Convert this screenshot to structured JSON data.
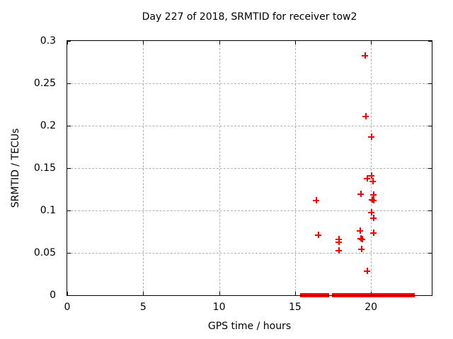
{
  "chart_data": {
    "type": "scatter",
    "title": "Day 227 of 2018, SRMTID for receiver tow2",
    "xlabel": "GPS time / hours",
    "ylabel": "SRMTID / TECUs",
    "xlim": [
      0,
      24
    ],
    "ylim": [
      0,
      0.3
    ],
    "grid": true,
    "legend": false,
    "xticks": {
      "values": [
        0,
        5,
        10,
        15,
        20
      ],
      "labels": [
        "0",
        "5",
        "10",
        "15",
        "20"
      ]
    },
    "yticks": {
      "values": [
        0,
        0.05,
        0.1,
        0.15,
        0.2,
        0.25,
        0.3
      ],
      "labels": [
        "0",
        "0.05",
        "0.1",
        "0.15",
        "0.2",
        "0.25",
        "0.3"
      ]
    },
    "marker": {
      "shape": "plus",
      "color": "#ff0000"
    },
    "points": [
      {
        "x": 16.4,
        "y": 0.112
      },
      {
        "x": 16.5,
        "y": 0.071
      },
      {
        "x": 17.85,
        "y": 0.066
      },
      {
        "x": 17.85,
        "y": 0.063
      },
      {
        "x": 17.85,
        "y": 0.053
      },
      {
        "x": 19.26,
        "y": 0.076
      },
      {
        "x": 19.3,
        "y": 0.067
      },
      {
        "x": 19.32,
        "y": 0.12
      },
      {
        "x": 19.4,
        "y": 0.066
      },
      {
        "x": 19.35,
        "y": 0.055
      },
      {
        "x": 19.58,
        "y": 0.283
      },
      {
        "x": 19.63,
        "y": 0.211
      },
      {
        "x": 19.72,
        "y": 0.138
      },
      {
        "x": 19.72,
        "y": 0.029
      },
      {
        "x": 20.0,
        "y": 0.141
      },
      {
        "x": 20.03,
        "y": 0.187
      },
      {
        "x": 20.1,
        "y": 0.135
      },
      {
        "x": 20.05,
        "y": 0.113
      },
      {
        "x": 20.15,
        "y": 0.112
      },
      {
        "x": 20.0,
        "y": 0.098
      },
      {
        "x": 20.15,
        "y": 0.119
      },
      {
        "x": 20.15,
        "y": 0.091
      },
      {
        "x": 20.15,
        "y": 0.074
      }
    ],
    "zero_line_segments": [
      {
        "x_start": 15.32,
        "x_end": 17.26,
        "y": 0
      },
      {
        "x_start": 17.42,
        "x_end": 22.87,
        "y": 0
      }
    ],
    "colors": {
      "marker": "#ff0000",
      "zero_line": "#ff0000",
      "grid": "#b0b0b0",
      "border": "#000000",
      "background": "#ffffff",
      "text": "#000000"
    }
  }
}
